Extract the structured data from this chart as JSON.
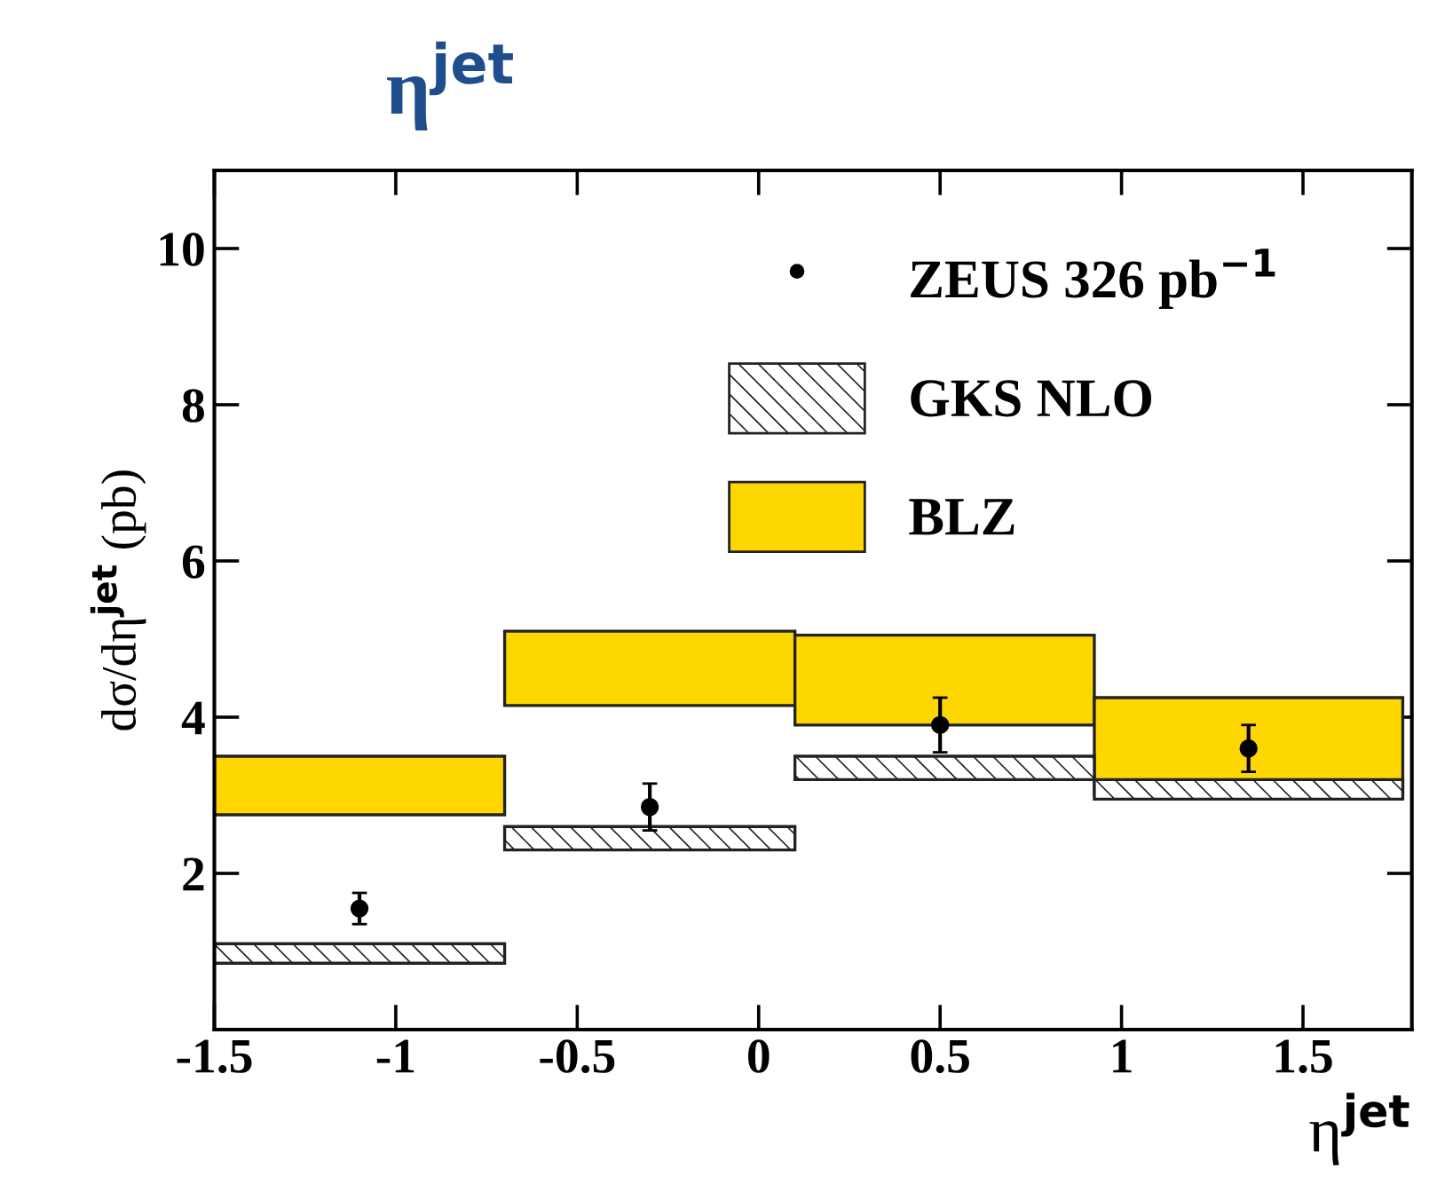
{
  "chart_data": {
    "type": "bar",
    "title": "η$^{jet}$",
    "xlabel": "η$^{jet}$",
    "ylabel": "dσ/dη$^{jet}$ (pb)",
    "x": [
      -1.1,
      -0.3,
      0.5,
      1.35
    ],
    "series": [
      {
        "name": "BLZ",
        "color": "#ffd700",
        "base": [
          2.75,
          4.15,
          3.9,
          3.0
        ],
        "values": [
          0.75,
          0.95,
          1.15,
          1.25
        ]
      },
      {
        "name": "GKS NLO",
        "color": "#222222",
        "base": [
          0.85,
          2.3,
          3.2,
          2.95
        ],
        "values": [
          0.25,
          0.3,
          0.3,
          0.25
        ]
      },
      {
        "name": "ZEUS 326 pb$^{−1}$",
        "type": "scatter",
        "color": "#000000",
        "x": [
          -1.1,
          -0.3,
          0.5,
          1.35
        ],
        "values": [
          1.55,
          2.85,
          3.9,
          3.6
        ],
        "errors": [
          0.2,
          0.3,
          0.35,
          0.3
        ]
      }
    ],
    "marker": "circle",
    "legend": "top right",
    "xlim": [
      -1.5,
      1.8
    ],
    "xticks": [
      -1.5,
      -1,
      -0.5,
      0,
      0.5,
      1,
      1.5
    ],
    "ylim": [
      0,
      11
    ],
    "yticks": [
      2,
      4,
      6,
      8,
      10
    ],
    "grid": false
  }
}
